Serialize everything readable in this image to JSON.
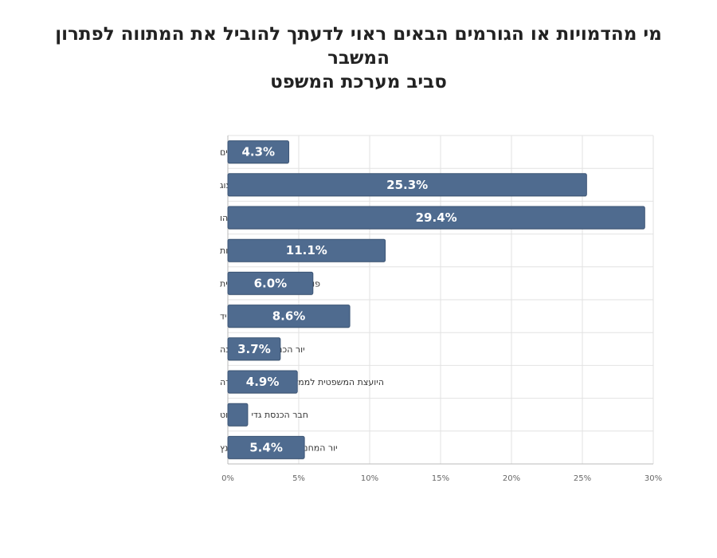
{
  "chart_data": {
    "type": "bar",
    "orientation": "horizontal",
    "title_lines": [
      "מי מהדמויות או הגורמים הבאים ראוי לדעתך להוביל את המתווה לפתרון המשבר",
      "סביב מערכת המשפט"
    ],
    "categories": [
      "פורום אנשי עסקים",
      "נשיא המדינה יצחק הרצוג",
      "ראש הממשלה בנימין נתניהו",
      "נשיאת בית המשפט העליון אסתר חיות",
      "פורום ארגוני חברה אזרחית",
      "יור האופוזיציה יאיר לפיד",
      "יור הכנסת אמיר אוחנה",
      "היועצת המשפטית לממשלה גלי בהרבמיארה",
      "חבר הכנסת גדי איזנקוט",
      "יור המחנה הממלכתי חכ בני גנץ"
    ],
    "values": [
      4.3,
      25.3,
      29.4,
      11.1,
      6.0,
      8.6,
      3.7,
      4.9,
      1.4,
      5.4
    ],
    "data_labels": [
      "4.3%",
      "25.3%",
      "29.4%",
      "11.1%",
      "6.0%",
      "8.6%",
      "3.7%",
      "4.9%",
      "",
      "5.4%"
    ],
    "xlim": [
      0,
      30
    ],
    "xticks": [
      0,
      5,
      10,
      15,
      20,
      25,
      30
    ],
    "xtick_labels": [
      "0%",
      "5%",
      "10%",
      "15%",
      "20%",
      "25%",
      "30%"
    ],
    "grid": true,
    "bar_color": "#4f6b8f",
    "bar_stroke": "#3d5676",
    "grid_color": "#e2e2e2",
    "axis_color": "#bbbbbb"
  }
}
